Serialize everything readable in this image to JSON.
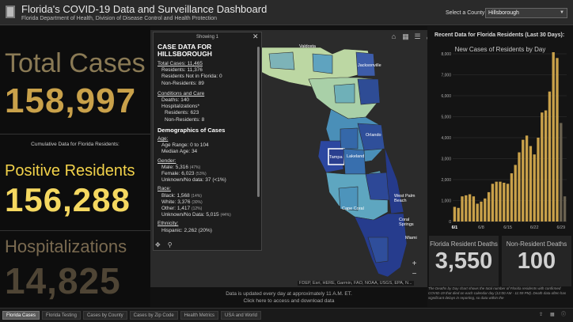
{
  "header": {
    "title": "Florida's COVID-19 Data and Surveillance Dashboard",
    "subtitle": "Florida Department of Health, Division of Disease Control and Health Protection",
    "county_label": "Select a County",
    "county_value": "Hillsborough"
  },
  "left": {
    "total_cases_label": "Total Cases",
    "total_cases_value": "158,997",
    "cumulative_note": "Cumulative Data for Florida Residents:",
    "positive_label": "Positive Residents",
    "positive_value": "156,288",
    "hosp_label": "Hospitalizations",
    "hosp_value": "14,825"
  },
  "popup": {
    "showing": "Showing 1",
    "title_line1": "CASE DATA FOR",
    "title_line2": "HILLSBOROUGH",
    "total_cases": "Total Cases: 11,465",
    "residents": "Residents: 11,376",
    "not_in_florida": "Residents Not in Florida: 0",
    "non_residents": "Non-Residents: 89",
    "conditions_heading": "Conditions and Care",
    "deaths": "Deaths: 140",
    "hospitalizations": "Hospitalizations*",
    "hosp_residents": "Residents: 623",
    "hosp_nonresidents": "Non-Residents: 8",
    "demographics_heading": "Demographics of Cases",
    "age_heading": "Age:",
    "age_range": "Age Range: 0 to 104",
    "median_age": "Median Age: 34",
    "gender_heading": "Gender:",
    "male": "Male: 5,316",
    "male_pct": "(47%)",
    "female": "Female: 6,023",
    "female_pct": "(53%)",
    "gender_unknown": "Unknown/No data: 37 (<1%)",
    "race_heading": "Race:",
    "black": "Black: 1,568",
    "black_pct": "(14%)",
    "white": "White: 3,376",
    "white_pct": "(30%)",
    "other": "Other: 1,417",
    "other_pct": "(12%)",
    "race_unknown": "Unknown/No Data: 5,015",
    "race_unknown_pct": "(44%)",
    "ethnicity_heading": "Ethnicity:",
    "hispanic": "Hispanic: 2,262 (20%)"
  },
  "map": {
    "labels": {
      "valdosta": "Valdosta",
      "jacksonville": "Jacksonville",
      "orlando": "Orlando",
      "tampa": "Tampa",
      "lakeland": "Lakeland",
      "cape_coral": "Cape Coral",
      "west_palm": "West Palm Beach",
      "coral_springs": "Coral Springs",
      "miami": "Miami"
    },
    "credit": "FDEP, Esri, HERE, Garmin, FAO, NOAA, USGS, EPA, N...",
    "note_line1": "Data is updated every day at approximately 11 A.M. ET.",
    "note_line2": "Click here to access and download data"
  },
  "right": {
    "chart_heading": "Recent Data for Florida Residents (Last 30 Days):",
    "chart_subtitle": "New Cases of Residents by Day",
    "resident_deaths_label": "Florida Resident Deaths",
    "resident_deaths_value": "3,550",
    "nonresident_deaths_label": "Non-Resident Deaths",
    "nonresident_deaths_value": "100",
    "footnote": "The Deaths by Day chart shows the total number of Florida residents with confirmed COVID-19 that died on each calendar day (12:00 AM - 11:59 PM). Death data often has significant delays in reporting, so data within the"
  },
  "chart_data": {
    "type": "bar",
    "title": "New Cases of Residents by Day",
    "x": [
      "6/1",
      "6/2",
      "6/3",
      "6/4",
      "6/5",
      "6/6",
      "6/7",
      "6/8",
      "6/9",
      "6/10",
      "6/11",
      "6/12",
      "6/13",
      "6/14",
      "6/15",
      "6/16",
      "6/17",
      "6/18",
      "6/19",
      "6/20",
      "6/21",
      "6/22",
      "6/23",
      "6/24",
      "6/25",
      "6/26",
      "6/27",
      "6/28",
      "6/29",
      "6/30"
    ],
    "values": [
      700,
      650,
      1200,
      1250,
      1300,
      1200,
      850,
      950,
      1100,
      1400,
      1800,
      1900,
      1900,
      1850,
      1800,
      2300,
      2700,
      3300,
      3900,
      4100,
      3600,
      3200,
      4000,
      5200,
      5300,
      6200,
      8100,
      7800,
      4700,
      1200
    ],
    "ylim": [
      0,
      8000
    ],
    "yticks": [
      0,
      1000,
      2000,
      3000,
      4000,
      5000,
      6000,
      7000,
      8000
    ],
    "xtick_labels": [
      "6/1",
      "6/8",
      "6/15",
      "6/22",
      "6/29"
    ],
    "colors": {
      "bars": "#c9a14a",
      "recent": "#6a6250"
    }
  },
  "tabs": [
    "Florida Cases",
    "Florida Testing",
    "Cases by County",
    "Cases by Zip Code",
    "Health Metrics",
    "USA and World"
  ],
  "tab_active": "Florida Cases"
}
